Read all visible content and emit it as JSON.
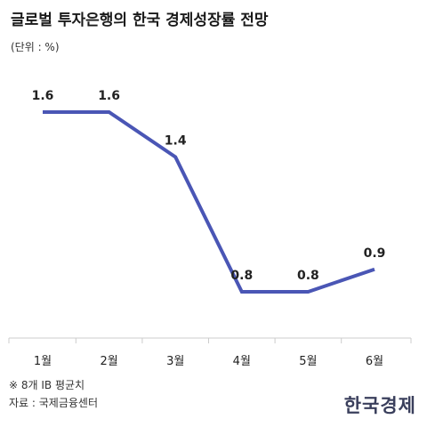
{
  "title": "글로벌 투자은행의 한국 경제성장률 전망",
  "unit_label": "(단위 : %)",
  "footnote": "※ 8개 IB 평균치",
  "source": "자료 : 국제금융센터",
  "brand": "한국경제",
  "colors": {
    "line": "#4a56b5",
    "axis": "#cccccc",
    "text": "#222222"
  },
  "chart_data": {
    "type": "line",
    "categories": [
      "1월",
      "2월",
      "3월",
      "4월",
      "5월",
      "6월"
    ],
    "series": [
      {
        "values": [
          1.6,
          1.6,
          1.4,
          0.8,
          0.8,
          0.9
        ]
      }
    ],
    "data_labels": [
      "1.6",
      "1.6",
      "1.4",
      "0.8",
      "0.8",
      "0.9"
    ],
    "ylim": [
      0.5,
      1.8
    ],
    "grid": false
  }
}
